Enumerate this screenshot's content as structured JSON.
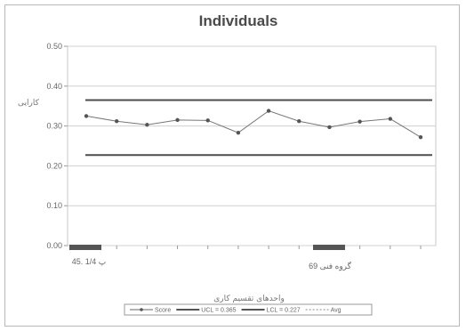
{
  "chart_data": {
    "type": "line",
    "title": "Individuals",
    "ylabel": "کارایی",
    "xlabel": "واحدهای تقسیم کاری",
    "ylim": [
      0,
      0.5
    ],
    "yticks": [
      "0.00",
      "0.10",
      "0.20",
      "0.30",
      "0.40",
      "0.50"
    ],
    "x_tick_labels": [
      "پ 1/4 .45",
      "گروه فنی 69"
    ],
    "grid": true,
    "series": [
      {
        "name": "Score",
        "values": [
          0.325,
          0.312,
          0.303,
          0.315,
          0.314,
          0.283,
          0.338,
          0.312,
          0.297,
          0.311,
          0.318,
          0.272
        ],
        "color": "#777777"
      }
    ],
    "ucl": 0.365,
    "lcl": 0.227,
    "avg": 0.296,
    "legend": {
      "position": "bottom",
      "entries": [
        "Score",
        "UCL = 0.365",
        "LCL = 0.227",
        "Avg"
      ]
    }
  },
  "colors": {
    "grid": "#d0d0d0",
    "limits": "#4d4d4d",
    "markers": "#555555"
  }
}
